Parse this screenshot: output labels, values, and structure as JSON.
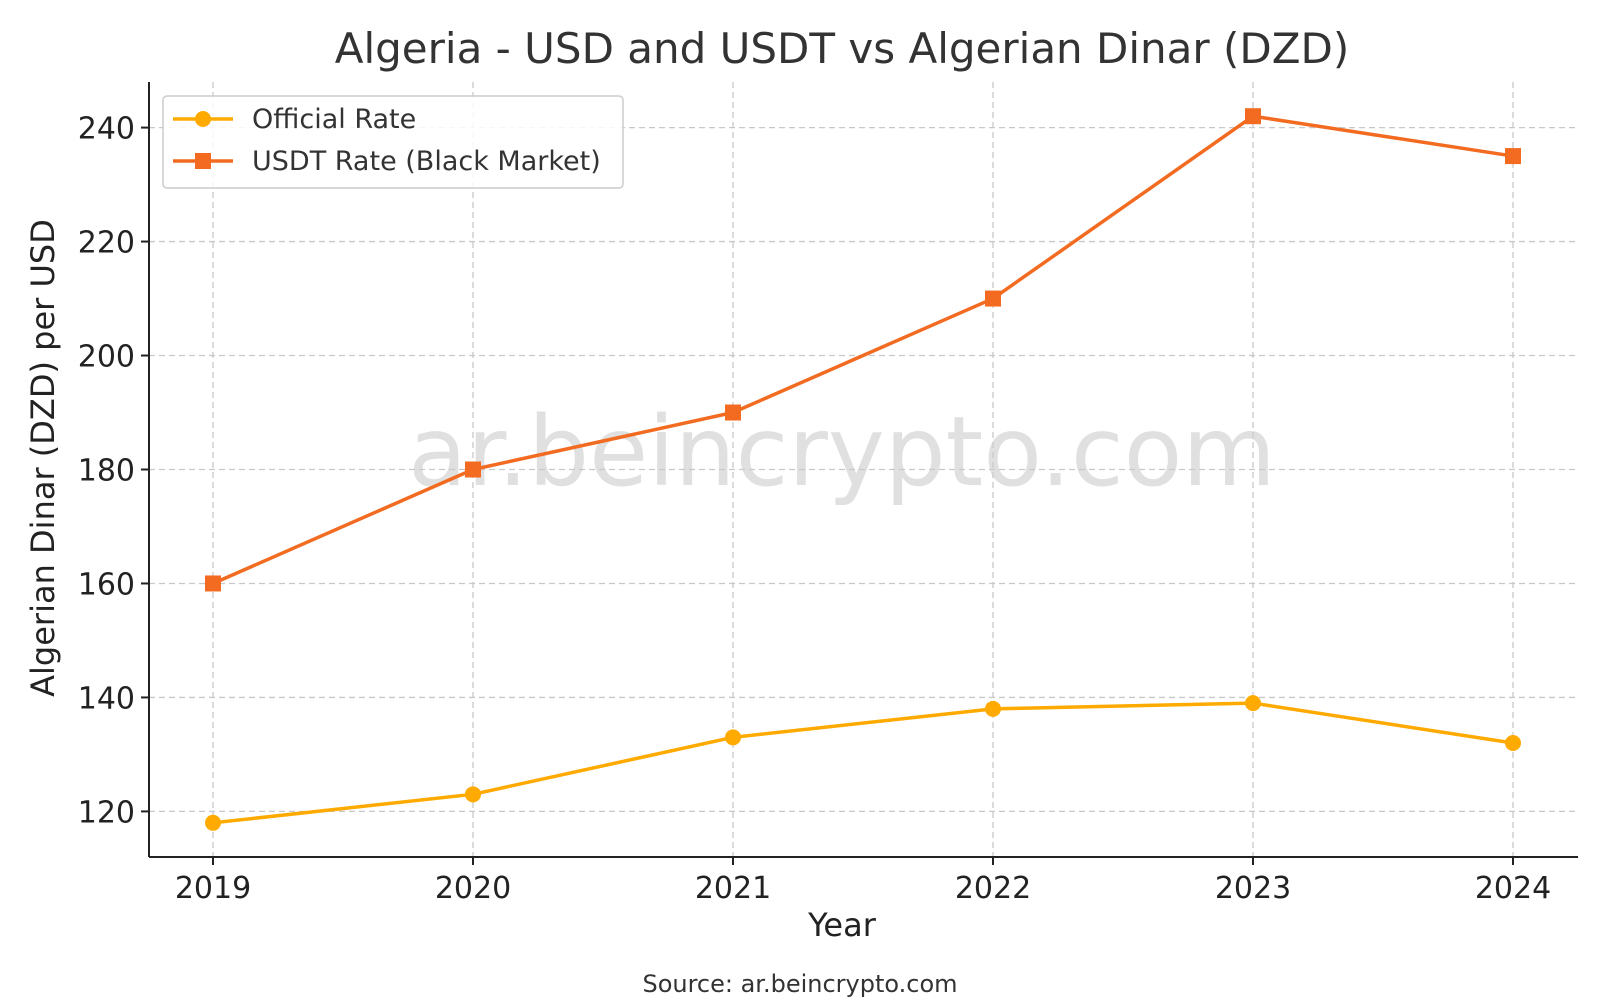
{
  "chart_data": {
    "type": "line",
    "title": "Algeria - USD and USDT vs Algerian Dinar (DZD)",
    "xlabel": "Year",
    "ylabel": "Algerian Dinar (DZD) per USD",
    "categories": [
      "2019",
      "2020",
      "2021",
      "2022",
      "2023",
      "2024"
    ],
    "yticks": [
      120,
      140,
      160,
      180,
      200,
      220,
      240
    ],
    "ylim": [
      112,
      248
    ],
    "grid": true,
    "legend_position": "top-left",
    "series": [
      {
        "name": "Official Rate",
        "values": [
          118,
          123,
          133,
          138,
          139,
          132
        ],
        "color": "#FFAA00",
        "marker": "circle"
      },
      {
        "name": "USDT Rate (Black Market)",
        "values": [
          160,
          180,
          190,
          210,
          242,
          235
        ],
        "color": "#F26B21",
        "marker": "square"
      }
    ],
    "watermark": "ar.beincrypto.com",
    "source": "Source: ar.beincrypto.com"
  }
}
